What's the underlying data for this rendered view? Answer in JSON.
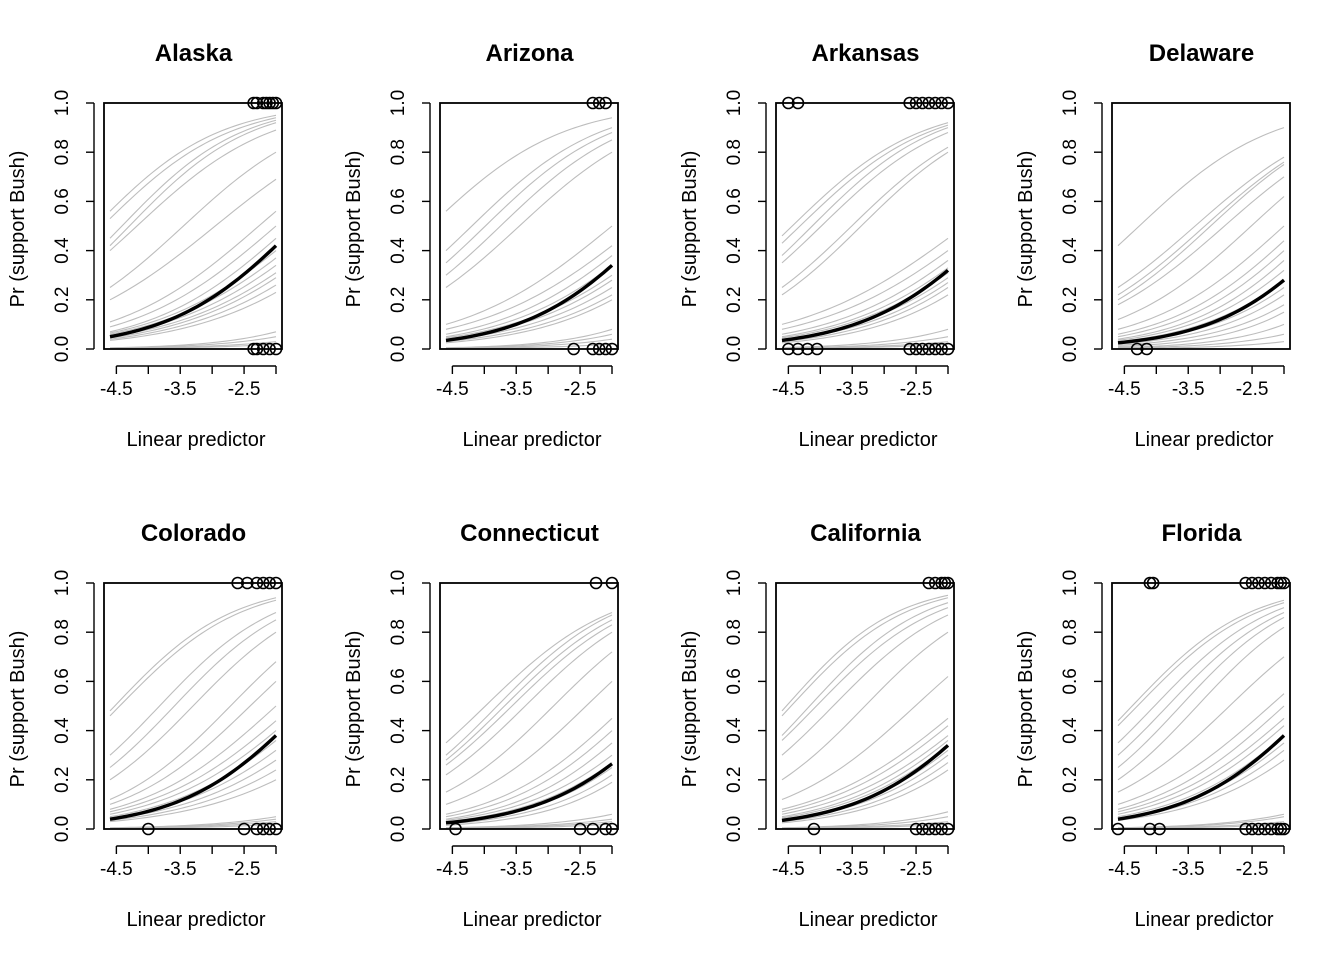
{
  "figure": {
    "colors": {
      "foreground": "#000000",
      "simulation": "#bdbdbd",
      "background": "#ffffff"
    }
  },
  "chart_data": [
    {
      "type": "line",
      "title": "Alaska",
      "xlabel": "Linear predictor",
      "ylabel": "Pr (support Bush)",
      "xlim": [
        -4.6,
        -2.0
      ],
      "ylim": [
        0,
        1
      ],
      "xticks": [
        -4.5,
        -3.5,
        -2.5
      ],
      "yticks": [
        0.0,
        0.2,
        0.4,
        0.6,
        0.8,
        1.0
      ],
      "fit": {
        "name": "",
        "x": [
          -4.6,
          -2.0
        ],
        "y": [
          0.05,
          0.42
        ]
      },
      "sims": [
        [
          0.56,
          0.95
        ],
        [
          0.53,
          0.94
        ],
        [
          0.45,
          0.93
        ],
        [
          0.42,
          0.92
        ],
        [
          0.4,
          0.89
        ],
        [
          0.25,
          0.8
        ],
        [
          0.2,
          0.69
        ],
        [
          0.11,
          0.56
        ],
        [
          0.09,
          0.5
        ],
        [
          0.07,
          0.45
        ],
        [
          0.065,
          0.4
        ],
        [
          0.06,
          0.37
        ],
        [
          0.055,
          0.34
        ],
        [
          0.05,
          0.31
        ],
        [
          0.045,
          0.29
        ],
        [
          0.04,
          0.26
        ],
        [
          0.035,
          0.23
        ],
        [
          0.005,
          0.07
        ],
        [
          0.004,
          0.05
        ],
        [
          0.003,
          0.03
        ],
        [
          0.002,
          0.02
        ]
      ],
      "obs_one": [
        -2.35,
        -2.3,
        -2.2,
        -2.15,
        -2.1,
        -2.05,
        -2.0
      ],
      "obs_zero": [
        -2.35,
        -2.3,
        -2.2,
        -2.1,
        -2.0
      ]
    },
    {
      "type": "line",
      "title": "Arizona",
      "xlabel": "Linear predictor",
      "ylabel": "Pr (support Bush)",
      "xlim": [
        -4.6,
        -2.0
      ],
      "ylim": [
        0,
        1
      ],
      "xticks": [
        -4.5,
        -3.5,
        -2.5
      ],
      "yticks": [
        0.0,
        0.2,
        0.4,
        0.6,
        0.8,
        1.0
      ],
      "fit": {
        "name": "",
        "x": [
          -4.6,
          -2.0
        ],
        "y": [
          0.035,
          0.34
        ]
      },
      "sims": [
        [
          0.56,
          0.94
        ],
        [
          0.4,
          0.9
        ],
        [
          0.35,
          0.88
        ],
        [
          0.3,
          0.85
        ],
        [
          0.25,
          0.8
        ],
        [
          0.1,
          0.5
        ],
        [
          0.08,
          0.42
        ],
        [
          0.06,
          0.38
        ],
        [
          0.05,
          0.34
        ],
        [
          0.045,
          0.3
        ],
        [
          0.04,
          0.28
        ],
        [
          0.035,
          0.25
        ],
        [
          0.03,
          0.22
        ],
        [
          0.025,
          0.2
        ],
        [
          0.005,
          0.08
        ],
        [
          0.004,
          0.06
        ],
        [
          0.003,
          0.04
        ],
        [
          0.002,
          0.02
        ]
      ],
      "obs_one": [
        -2.3,
        -2.2,
        -2.1
      ],
      "obs_zero": [
        -2.6,
        -2.3,
        -2.2,
        -2.1,
        -2.0
      ]
    },
    {
      "type": "line",
      "title": "Arkansas",
      "xlabel": "Linear predictor",
      "ylabel": "Pr (support Bush)",
      "xlim": [
        -4.6,
        -2.0
      ],
      "ylim": [
        0,
        1
      ],
      "xticks": [
        -4.5,
        -3.5,
        -2.5
      ],
      "yticks": [
        0.0,
        0.2,
        0.4,
        0.6,
        0.8,
        1.0
      ],
      "fit": {
        "name": "",
        "x": [
          -4.6,
          -2.0
        ],
        "y": [
          0.035,
          0.32
        ]
      },
      "sims": [
        [
          0.46,
          0.92
        ],
        [
          0.43,
          0.91
        ],
        [
          0.38,
          0.9
        ],
        [
          0.35,
          0.88
        ],
        [
          0.25,
          0.82
        ],
        [
          0.22,
          0.8
        ],
        [
          0.1,
          0.45
        ],
        [
          0.08,
          0.4
        ],
        [
          0.06,
          0.36
        ],
        [
          0.05,
          0.33
        ],
        [
          0.045,
          0.31
        ],
        [
          0.04,
          0.29
        ],
        [
          0.035,
          0.27
        ],
        [
          0.03,
          0.25
        ],
        [
          0.025,
          0.22
        ],
        [
          0.006,
          0.08
        ],
        [
          0.004,
          0.05
        ],
        [
          0.003,
          0.03
        ],
        [
          0.002,
          0.02
        ]
      ],
      "obs_one": [
        -4.5,
        -4.35,
        -2.6,
        -2.5,
        -2.4,
        -2.3,
        -2.2,
        -2.1,
        -2.0
      ],
      "obs_zero": [
        -4.5,
        -4.35,
        -4.2,
        -4.05,
        -2.6,
        -2.5,
        -2.4,
        -2.3,
        -2.2,
        -2.1,
        -2.0
      ]
    },
    {
      "type": "line",
      "title": "Delaware",
      "xlabel": "Linear predictor",
      "ylabel": "Pr (support Bush)",
      "xlim": [
        -4.6,
        -2.0
      ],
      "ylim": [
        0,
        1
      ],
      "xticks": [
        -4.5,
        -3.5,
        -2.5
      ],
      "yticks": [
        0.0,
        0.2,
        0.4,
        0.6,
        0.8,
        1.0
      ],
      "fit": {
        "name": "",
        "x": [
          -4.6,
          -2.0
        ],
        "y": [
          0.025,
          0.28
        ]
      },
      "sims": [
        [
          0.42,
          0.9
        ],
        [
          0.25,
          0.78
        ],
        [
          0.22,
          0.76
        ],
        [
          0.2,
          0.75
        ],
        [
          0.18,
          0.7
        ],
        [
          0.12,
          0.62
        ],
        [
          0.08,
          0.5
        ],
        [
          0.06,
          0.44
        ],
        [
          0.05,
          0.4
        ],
        [
          0.04,
          0.36
        ],
        [
          0.035,
          0.32
        ],
        [
          0.03,
          0.28
        ],
        [
          0.025,
          0.25
        ],
        [
          0.02,
          0.22
        ],
        [
          0.015,
          0.18
        ],
        [
          0.01,
          0.15
        ],
        [
          0.006,
          0.1
        ],
        [
          0.004,
          0.06
        ],
        [
          0.002,
          0.03
        ]
      ],
      "obs_one": [],
      "obs_zero": [
        -4.3,
        -4.15
      ]
    },
    {
      "type": "line",
      "title": "Colorado",
      "xlabel": "Linear predictor",
      "ylabel": "Pr (support Bush)",
      "xlim": [
        -4.6,
        -2.0
      ],
      "ylim": [
        0,
        1
      ],
      "xticks": [
        -4.5,
        -3.5,
        -2.5
      ],
      "yticks": [
        0.0,
        0.2,
        0.4,
        0.6,
        0.8,
        1.0
      ],
      "fit": {
        "name": "",
        "x": [
          -4.6,
          -2.0
        ],
        "y": [
          0.04,
          0.38
        ]
      },
      "sims": [
        [
          0.48,
          0.94
        ],
        [
          0.46,
          0.93
        ],
        [
          0.3,
          0.88
        ],
        [
          0.25,
          0.85
        ],
        [
          0.2,
          0.8
        ],
        [
          0.12,
          0.68
        ],
        [
          0.1,
          0.6
        ],
        [
          0.08,
          0.5
        ],
        [
          0.07,
          0.44
        ],
        [
          0.06,
          0.4
        ],
        [
          0.05,
          0.36
        ],
        [
          0.045,
          0.32
        ],
        [
          0.04,
          0.28
        ],
        [
          0.035,
          0.24
        ],
        [
          0.03,
          0.2
        ],
        [
          0.005,
          0.05
        ],
        [
          0.004,
          0.04
        ],
        [
          0.003,
          0.03
        ],
        [
          0.002,
          0.02
        ]
      ],
      "obs_one": [
        -2.6,
        -2.45,
        -2.3,
        -2.2,
        -2.1,
        -2.0
      ],
      "obs_zero": [
        -4.0,
        -2.5,
        -2.3,
        -2.2,
        -2.1,
        -2.0
      ]
    },
    {
      "type": "line",
      "title": "Connecticut",
      "xlabel": "Linear predictor",
      "ylabel": "Pr (support Bush)",
      "xlim": [
        -4.6,
        -2.0
      ],
      "ylim": [
        0,
        1
      ],
      "xticks": [
        -4.5,
        -3.5,
        -2.5
      ],
      "yticks": [
        0.0,
        0.2,
        0.4,
        0.6,
        0.8,
        1.0
      ],
      "fit": {
        "name": "",
        "x": [
          -4.6,
          -2.0
        ],
        "y": [
          0.025,
          0.265
        ]
      },
      "sims": [
        [
          0.35,
          0.88
        ],
        [
          0.3,
          0.87
        ],
        [
          0.28,
          0.85
        ],
        [
          0.26,
          0.83
        ],
        [
          0.22,
          0.8
        ],
        [
          0.15,
          0.72
        ],
        [
          0.1,
          0.6
        ],
        [
          0.06,
          0.45
        ],
        [
          0.05,
          0.4
        ],
        [
          0.04,
          0.35
        ],
        [
          0.035,
          0.3
        ],
        [
          0.03,
          0.27
        ],
        [
          0.025,
          0.25
        ],
        [
          0.02,
          0.22
        ],
        [
          0.015,
          0.19
        ],
        [
          0.005,
          0.06
        ],
        [
          0.004,
          0.04
        ],
        [
          0.003,
          0.03
        ],
        [
          0.002,
          0.02
        ]
      ],
      "obs_one": [
        -2.25,
        -2.0
      ],
      "obs_zero": [
        -4.45,
        -2.5,
        -2.3,
        -2.1,
        -2.0
      ]
    },
    {
      "type": "line",
      "title": "California",
      "xlabel": "Linear predictor",
      "ylabel": "Pr (support Bush)",
      "xlim": [
        -4.6,
        -2.0
      ],
      "ylim": [
        0,
        1
      ],
      "xticks": [
        -4.5,
        -3.5,
        -2.5
      ],
      "yticks": [
        0.0,
        0.2,
        0.4,
        0.6,
        0.8,
        1.0
      ],
      "fit": {
        "name": "",
        "x": [
          -4.6,
          -2.0
        ],
        "y": [
          0.035,
          0.34
        ]
      },
      "sims": [
        [
          0.48,
          0.95
        ],
        [
          0.46,
          0.94
        ],
        [
          0.38,
          0.92
        ],
        [
          0.36,
          0.9
        ],
        [
          0.3,
          0.87
        ],
        [
          0.2,
          0.8
        ],
        [
          0.12,
          0.62
        ],
        [
          0.08,
          0.45
        ],
        [
          0.07,
          0.42
        ],
        [
          0.06,
          0.38
        ],
        [
          0.05,
          0.36
        ],
        [
          0.045,
          0.34
        ],
        [
          0.04,
          0.32
        ],
        [
          0.035,
          0.3
        ],
        [
          0.03,
          0.27
        ],
        [
          0.025,
          0.24
        ],
        [
          0.005,
          0.07
        ],
        [
          0.004,
          0.05
        ],
        [
          0.003,
          0.03
        ],
        [
          0.002,
          0.02
        ]
      ],
      "obs_one": [
        -2.3,
        -2.2,
        -2.1,
        -2.05,
        -2.0
      ],
      "obs_zero": [
        -4.1,
        -2.5,
        -2.4,
        -2.3,
        -2.2,
        -2.1,
        -2.0
      ]
    },
    {
      "type": "line",
      "title": "Florida",
      "xlabel": "Linear predictor",
      "ylabel": "Pr (support Bush)",
      "xlim": [
        -4.6,
        -2.0
      ],
      "ylim": [
        0,
        1
      ],
      "xticks": [
        -4.5,
        -3.5,
        -2.5
      ],
      "yticks": [
        0.0,
        0.2,
        0.4,
        0.6,
        0.8,
        1.0
      ],
      "fit": {
        "name": "",
        "x": [
          -4.6,
          -2.0
        ],
        "y": [
          0.04,
          0.38
        ]
      },
      "sims": [
        [
          0.44,
          0.93
        ],
        [
          0.42,
          0.92
        ],
        [
          0.35,
          0.9
        ],
        [
          0.3,
          0.88
        ],
        [
          0.25,
          0.86
        ],
        [
          0.2,
          0.82
        ],
        [
          0.15,
          0.7
        ],
        [
          0.1,
          0.55
        ],
        [
          0.08,
          0.5
        ],
        [
          0.07,
          0.45
        ],
        [
          0.06,
          0.42
        ],
        [
          0.05,
          0.38
        ],
        [
          0.045,
          0.35
        ],
        [
          0.04,
          0.32
        ],
        [
          0.035,
          0.28
        ],
        [
          0.005,
          0.06
        ],
        [
          0.004,
          0.05
        ],
        [
          0.003,
          0.03
        ],
        [
          0.002,
          0.02
        ]
      ],
      "obs_one": [
        -4.1,
        -4.05,
        -2.6,
        -2.5,
        -2.4,
        -2.3,
        -2.2,
        -2.1,
        -2.05,
        -2.0
      ],
      "obs_zero": [
        -4.6,
        -4.1,
        -3.95,
        -2.6,
        -2.5,
        -2.4,
        -2.3,
        -2.2,
        -2.1,
        -2.05,
        -2.0
      ]
    }
  ]
}
